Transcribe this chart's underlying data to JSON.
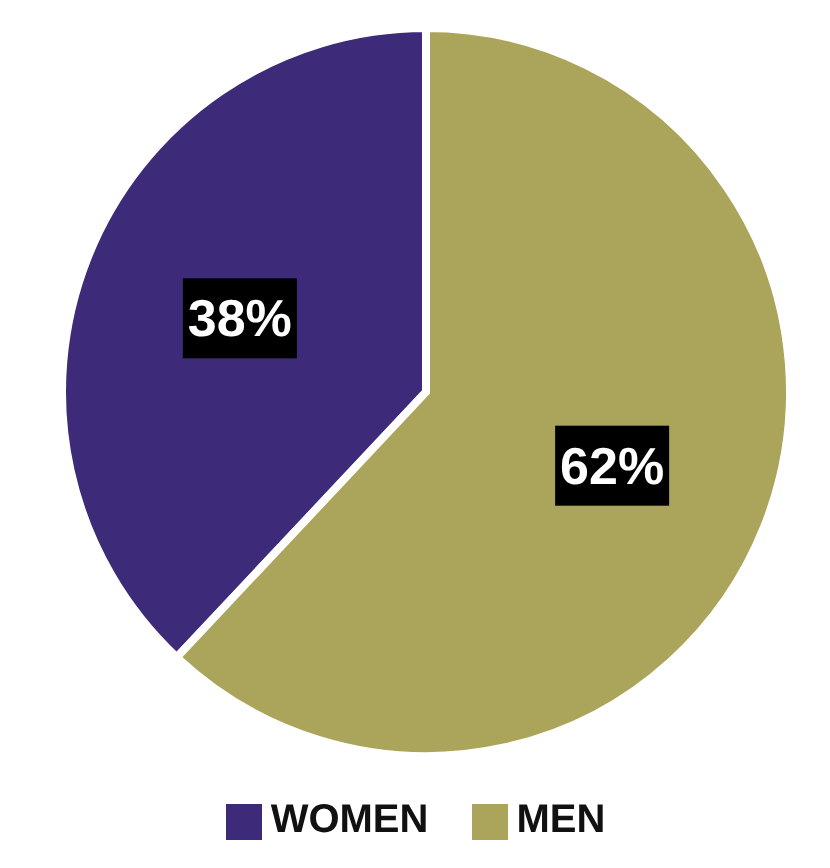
{
  "chart_data": {
    "type": "pie",
    "categories": [
      "WOMEN",
      "MEN"
    ],
    "values": [
      38,
      62
    ],
    "colors": [
      "#3d2a78",
      "#aaa55a"
    ],
    "value_labels": [
      "38%",
      "62%"
    ],
    "legend": "bottom"
  }
}
